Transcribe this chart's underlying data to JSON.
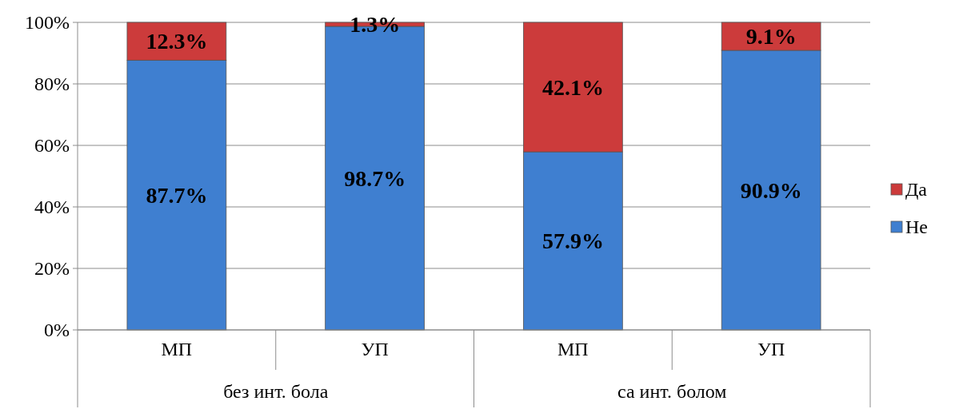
{
  "chart_data": {
    "type": "bar",
    "stacked": true,
    "categories": [
      "МП",
      "УП",
      "МП",
      "УП"
    ],
    "series": [
      {
        "name": "Не",
        "color": "#3f7fd0",
        "values": [
          87.7,
          98.7,
          57.9,
          90.9
        ]
      },
      {
        "name": "Да",
        "color": "#cc3b3b",
        "values": [
          12.3,
          1.3,
          42.1,
          9.1
        ]
      }
    ],
    "value_labels": [
      [
        "87.7%",
        "98.7%",
        "57.9%",
        "90.9%"
      ],
      [
        "12.3%",
        "1.3%",
        "42.1%",
        "9.1%"
      ]
    ],
    "ylim": [
      0,
      100
    ],
    "yticks": [
      {
        "value": 0,
        "label": "0%"
      },
      {
        "value": 20,
        "label": "20%"
      },
      {
        "value": 40,
        "label": "40%"
      },
      {
        "value": 60,
        "label": "60%"
      },
      {
        "value": 80,
        "label": "80%"
      },
      {
        "value": 100,
        "label": "100%"
      }
    ],
    "grid": "y",
    "legend": "right",
    "annotations": [
      "без инт. бола",
      "са инт. болом"
    ]
  }
}
